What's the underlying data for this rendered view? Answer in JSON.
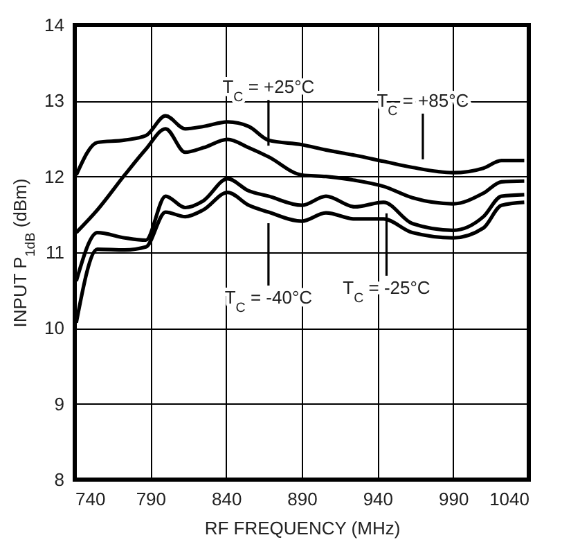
{
  "chart_data": {
    "type": "line",
    "xlabel": "RF FREQUENCY (MHz)",
    "ylabel": "INPUT P$_{1dB}$ (dBm)",
    "xlim": [
      740,
      1040
    ],
    "xticks": [
      740,
      790,
      840,
      890,
      940,
      990,
      1040
    ],
    "ylim": [
      8,
      14
    ],
    "yticks": [
      8,
      9,
      10,
      11,
      12,
      13,
      14
    ],
    "grid": true,
    "line_style": "solid",
    "x": [
      741,
      755,
      773,
      787,
      800,
      813,
      825,
      841,
      855,
      868,
      890,
      906,
      925,
      944,
      963,
      990,
      1010,
      1022,
      1037
    ],
    "series": [
      {
        "color": "#000000",
        "values": [
          12.02,
          12.45,
          12.48,
          12.54,
          12.8,
          12.63,
          12.66,
          12.72,
          12.66,
          12.48,
          12.42,
          12.35,
          12.28,
          12.2,
          12.12,
          12.05,
          12.11,
          12.21,
          12.21
        ]
      },
      {
        "color": "#000000",
        "values": [
          11.26,
          11.56,
          12.02,
          12.36,
          12.63,
          12.32,
          12.38,
          12.49,
          12.38,
          12.26,
          12.02,
          12.0,
          11.95,
          11.87,
          11.72,
          11.64,
          11.78,
          11.93,
          11.94
        ]
      },
      {
        "color": "#000000",
        "values": [
          10.62,
          11.26,
          11.19,
          11.16,
          11.74,
          11.59,
          11.68,
          11.97,
          11.81,
          11.74,
          11.62,
          11.74,
          11.6,
          11.66,
          11.38,
          11.29,
          11.47,
          11.74,
          11.76
        ]
      },
      {
        "color": "#000000",
        "values": [
          10.07,
          11.04,
          11.03,
          11.07,
          11.53,
          11.47,
          11.56,
          11.79,
          11.62,
          11.53,
          11.41,
          11.52,
          11.44,
          11.44,
          11.26,
          11.19,
          11.32,
          11.62,
          11.66
        ]
      }
    ],
    "annotations": [
      {
        "text": "T$_{C}$ = +25°C",
        "x": 868,
        "y": 12.26
      },
      {
        "text": "T$_{C}$ = +85°C",
        "x": 970,
        "y": 12.08
      },
      {
        "text": "T$_{C}$ = -40°C",
        "x": 868,
        "y": 11.53
      },
      {
        "text": "T$_{C}$ = -25°C",
        "x": 946,
        "y": 11.66
      }
    ]
  }
}
